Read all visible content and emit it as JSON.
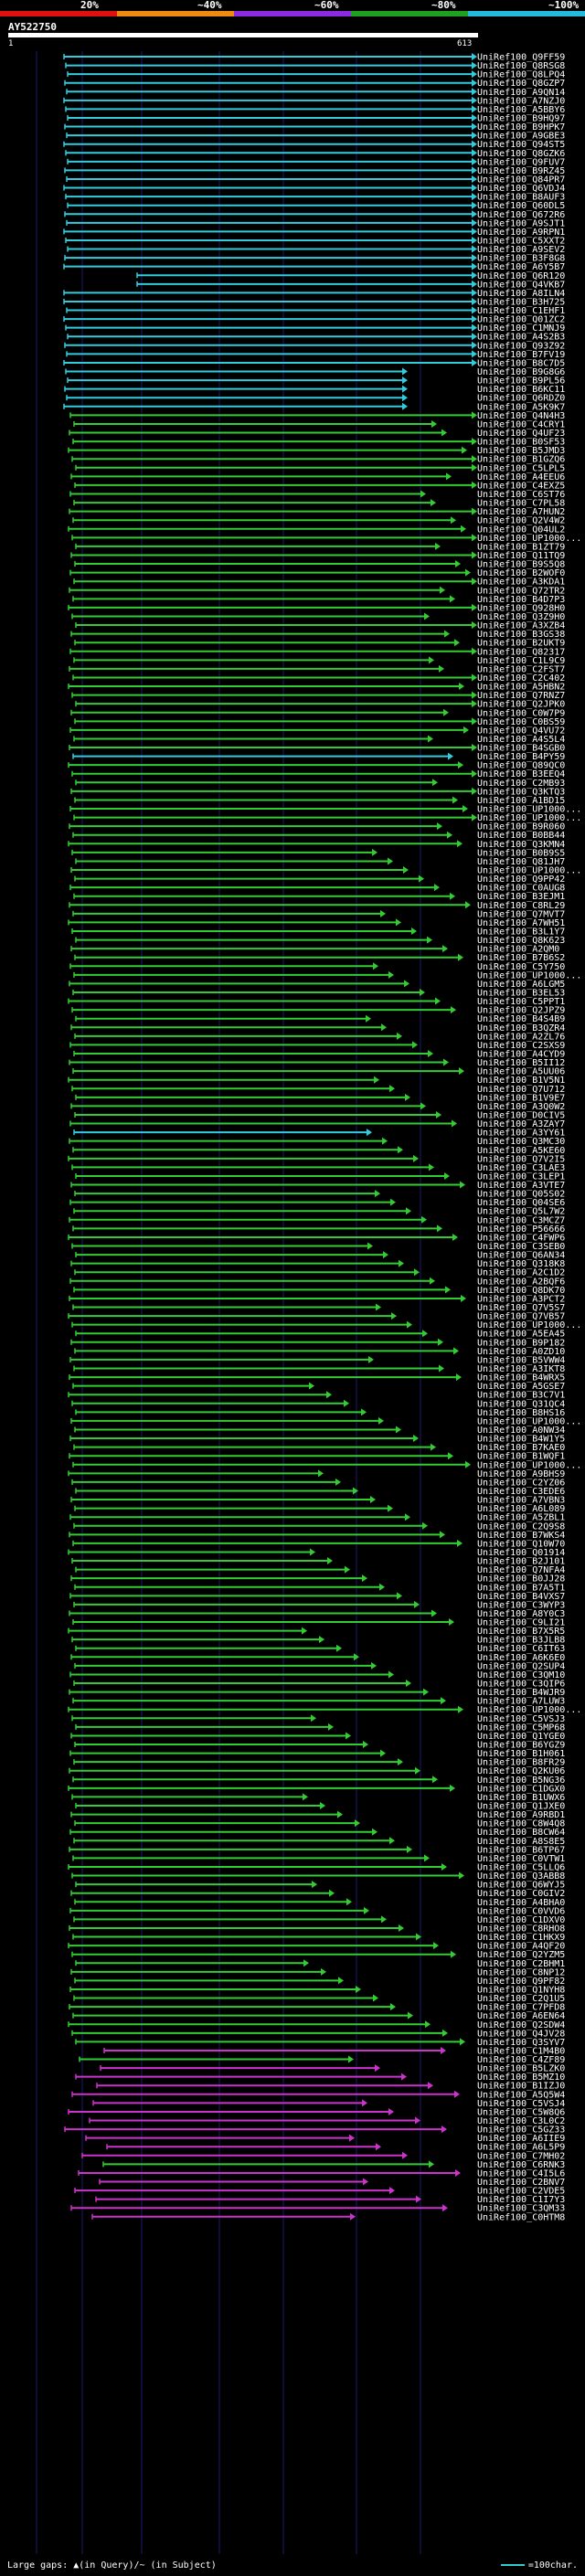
{
  "scale": {
    "labels": [
      "20%",
      "~40%",
      "~60%",
      "~80%",
      "~100%"
    ],
    "colors": [
      "#e01010",
      "#ee8a10",
      "#8a2be2",
      "#20a020",
      "#22bbdd"
    ]
  },
  "query": {
    "name": "AY522750",
    "start": "1",
    "end": "613"
  },
  "colors": {
    "cyan": "#33ccdd",
    "green": "#33cc33",
    "magenta": "#cc33cc",
    "gridline": "#1a1a6e"
  },
  "hits": [
    "UniRef100_Q9FF59",
    "UniRef100_Q8RSG8",
    "UniRef100_Q8LPQ4",
    "UniRef100_Q8GZP7",
    "UniRef100_A9QN14",
    "UniRef100_A7NZJ0",
    "UniRef100_A5BBY6",
    "UniRef100_B9HQ97",
    "UniRef100_B9HPK7",
    "UniRef100_A9GBE3",
    "UniRef100_Q94ST5",
    "UniRef100_Q8GZK6",
    "UniRef100_Q9FUV7",
    "UniRef100_B9RZ45",
    "UniRef100_Q84PR7",
    "UniRef100_Q6VDJ4",
    "UniRef100_B8AUF3",
    "UniRef100_Q60DL5",
    "UniRef100_Q672R6",
    "UniRef100_A9SJT1",
    "UniRef100_A9RPN1",
    "UniRef100_C5XXT2",
    "UniRef100_A9SEV2",
    "UniRef100_B3F8G8",
    "UniRef100_A6Y5B7",
    "UniRef100_Q6R120",
    "UniRef100_Q4VKB7",
    "UniRef100_A8ILN4",
    "UniRef100_B3H725",
    "UniRef100_C1EHF1",
    "UniRef100_Q01ZC2",
    "UniRef100_C1MNJ9",
    "UniRef100_A4S2B3",
    "UniRef100_Q93Z92",
    "UniRef100_B7FV19",
    "UniRef100_B8C7D5",
    "UniRef100_B9G8G6",
    "UniRef100_B9PL56",
    "UniRef100_B6KC11",
    "UniRef100_Q6RDZ0",
    "UniRef100_A5K9K7",
    "UniRef100_Q4N4H3",
    "UniRef100_C4CRY1",
    "UniRef100_Q4UF23",
    "UniRef100_B0SF53",
    "UniRef100_B5JMD3",
    "UniRef100_B1GZQ6",
    "UniRef100_C5LPL5",
    "UniRef100_A4EEU6",
    "UniRef100_C4EXZ5",
    "UniRef100_C6ST76",
    "UniRef100_C7PL58",
    "UniRef100_A7HUN2",
    "UniRef100_Q2V4W2",
    "UniRef100_Q04UL2",
    "UniRef100_UP1000...",
    "UniRef100_B1ZT79",
    "UniRef100_Q11TQ9",
    "UniRef100_B9S5Q8",
    "UniRef100_B2WOF0",
    "UniRef100_A3KDA1",
    "UniRef100_Q72TR2",
    "UniRef100_B4D7P3",
    "UniRef100_Q928H0",
    "UniRef100_Q3Z9H0",
    "UniRef100_A3XZB4",
    "UniRef100_B3GS38",
    "UniRef100_B2UKT9",
    "UniRef100_Q82317",
    "UniRef100_C1L9C9",
    "UniRef100_C2FST7",
    "UniRef100_C2C402",
    "UniRef100_A5HBN2",
    "UniRef100_Q7RNZ7",
    "UniRef100_Q2JPK0",
    "UniRef100_C0W7P9",
    "UniRef100_C0BS59",
    "UniRef100_Q4VU72",
    "UniRef100_A4S5L4",
    "UniRef100_B4SGB0",
    "UniRef100_B4PY59",
    "UniRef100_Q89QC0",
    "UniRef100_B3EEQ4",
    "UniRef100_C2MB93",
    "UniRef100_Q3KTQ3",
    "UniRef100_A1BD15",
    "UniRef100_UP1000...",
    "UniRef100_UP1000...",
    "UniRef100_B9R060",
    "UniRef100_B0BB44",
    "UniRef100_Q3KMN4",
    "UniRef100_B0B9S5",
    "UniRef100_Q81JH7",
    "UniRef100_UP1000...",
    "UniRef100_Q9PP42",
    "UniRef100_C0AUG8",
    "UniRef100_B3EJM1",
    "UniRef100_C8RL29",
    "UniRef100_Q7MVT7",
    "UniRef100_A7WH51",
    "UniRef100_B3L1Y7",
    "UniRef100_Q8K623",
    "UniRef100_A2QM0",
    "UniRef100_B7B6S2",
    "UniRef100_C5Y750",
    "UniRef100_UP1000...",
    "UniRef100_A6LGM5",
    "UniRef100_B3EL53",
    "UniRef100_C5PPT1",
    "UniRef100_Q2JPZ9",
    "UniRef100_B4S4B9",
    "UniRef100_B3QZR4",
    "UniRef100_A2ZL76",
    "UniRef100_C2SXS9",
    "UniRef100_A4CYD9",
    "UniRef100_B5II12",
    "UniRef100_A5UU06",
    "UniRef100_B1V5N1",
    "UniRef100_Q7U712",
    "UniRef100_B1V9E7",
    "UniRef100_A3Q0W2",
    "UniRef100_D0CIV5",
    "UniRef100_A3ZAY7",
    "UniRef100_A3YY61",
    "UniRef100_Q3MC30",
    "UniRef100_A5KE60",
    "UniRef100_Q7V2I5",
    "UniRef100_C3LAE3",
    "UniRef100_C3LEP1",
    "UniRef100_A3VTE7",
    "UniRef100_Q05S02",
    "UniRef100_Q04SE6",
    "UniRef100_Q5L7W2",
    "UniRef100_C3MCZ7",
    "UniRef100_P56666",
    "UniRef100_C4FWP6",
    "UniRef100_C3SEB0",
    "UniRef100_Q6AN34",
    "UniRef100_Q318K8",
    "UniRef100_A2C1D2",
    "UniRef100_A2BQF6",
    "UniRef100_Q8DK70",
    "UniRef100_A3PCT2",
    "UniRef100_Q7V5S7",
    "UniRef100_Q7VB57",
    "UniRef100_UP1000...",
    "UniRef100_A5EA45",
    "UniRef100_B9P182",
    "UniRef100_A0ZD10",
    "UniRef100_B5VWW4",
    "UniRef100_A3IKT8",
    "UniRef100_B4WRX5",
    "UniRef100_A5GSE7",
    "UniRef100_B3C7V1",
    "UniRef100_Q31QC4",
    "UniRef100_B8HS16",
    "UniRef100_UP1000...",
    "UniRef100_A0NW34",
    "UniRef100_B4W1Y5",
    "UniRef100_B7KAE0",
    "UniRef100_B1WQF1",
    "UniRef100_UP1000...",
    "UniRef100_A9BHS9",
    "UniRef100_C2YZ06",
    "UniRef100_C3EDE6",
    "UniRef100_A7VBN3",
    "UniRef100_A6L089",
    "UniRef100_A5ZBL1",
    "UniRef100_C2Q9S8",
    "UniRef100_B7WKS4",
    "UniRef100_Q10W70",
    "UniRef100_Q01914",
    "UniRef100_B2J101",
    "UniRef100_Q7NFA4",
    "UniRef100_B0JJ28",
    "UniRef100_B7A5T1",
    "UniRef100_B4VXS7",
    "UniRef100_C3WYP3",
    "UniRef100_A8Y0C3",
    "UniRef100_C9LI21",
    "UniRef100_B7X5R5",
    "UniRef100_B3JLB8",
    "UniRef100_C6IT63",
    "UniRef100_A6K6E0",
    "UniRef100_Q2SUP4",
    "UniRef100_C3QM10",
    "UniRef100_C3QIP6",
    "UniRef100_B4WJR9",
    "UniRef100_A7LUW3",
    "UniRef100_UP1000...",
    "UniRef100_C5VSJ3",
    "UniRef100_C5MP68",
    "UniRef100_Q1YGE0",
    "UniRef100_B6YGZ9",
    "UniRef100_B1H061",
    "UniRef100_B8FR29",
    "UniRef100_Q2KU06",
    "UniRef100_B5NG36",
    "UniRef100_C1DGX0",
    "UniRef100_B1UWX6",
    "UniRef100_Q1JXE0",
    "UniRef100_A9RBD1",
    "UniRef100_C8W4Q8",
    "UniRef100_B8CW64",
    "UniRef100_A8S8E5",
    "UniRef100_B6TP67",
    "UniRef100_C0VTW1",
    "UniRef100_C5LLQ6",
    "UniRef100_Q3ABB8",
    "UniRef100_Q6WYJ5",
    "UniRef100_C0GIV2",
    "UniRef100_A4BHA0",
    "UniRef100_C0VVD6",
    "UniRef100_C1DXV0",
    "UniRef100_C8RHO8",
    "UniRef100_C1HKX9",
    "UniRef100_A4QF20",
    "UniRef100_Q2YZM5",
    "UniRef100_C2BHM1",
    "UniRef100_C8NP12",
    "UniRef100_Q9PF82",
    "UniRef100_Q1NYH8",
    "UniRef100_C2Q1U5",
    "UniRef100_C7PFD8",
    "UniRef100_A6EN64",
    "UniRef100_Q2SDW4",
    "UniRef100_Q4JV28",
    "UniRef100_Q3SYV7",
    "UniRef100_C1M4B0",
    "UniRef100_C4ZF89",
    "UniRef100_B5LZK0",
    "UniRef100_B5MZ10",
    "UniRef100_B1IZJ0",
    "UniRef100_A5Q5W4",
    "UniRef100_C5VSJ4",
    "UniRef100_C5W8Q6",
    "UniRef100_C3L0C2",
    "UniRef100_C5GZ33",
    "UniRef100_A6IIE9",
    "UniRef100_A6L5P9",
    "UniRef100_C7MH02",
    "UniRef100_C6RNK3",
    "UniRef100_C4I5L6",
    "UniRef100_C2BNV7",
    "UniRef100_C2VDE5",
    "UniRef100_C1I7Y3",
    "UniRef100_C3QM33",
    "UniRef100_C0HTM8"
  ],
  "legend": {
    "gaps_text": "Large gaps: ▲(in Query)/~ (in Subject)",
    "scale_text": "=100char."
  }
}
